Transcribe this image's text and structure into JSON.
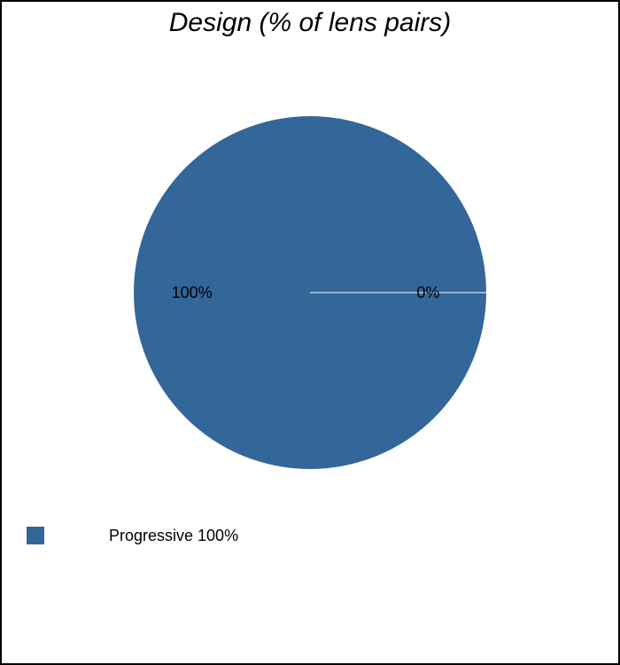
{
  "chart_data": {
    "type": "pie",
    "title": "Design (% of lens pairs)",
    "slices": [
      {
        "label": "Progressive",
        "value": 100,
        "data_label": "100%",
        "legend_label": "Progressive 100%",
        "color": "#336699"
      },
      {
        "label": "",
        "value": 0,
        "data_label": "0%",
        "color": "#336699"
      }
    ],
    "legend_position": "bottom-left",
    "slice_border_color": "#ffffff"
  }
}
